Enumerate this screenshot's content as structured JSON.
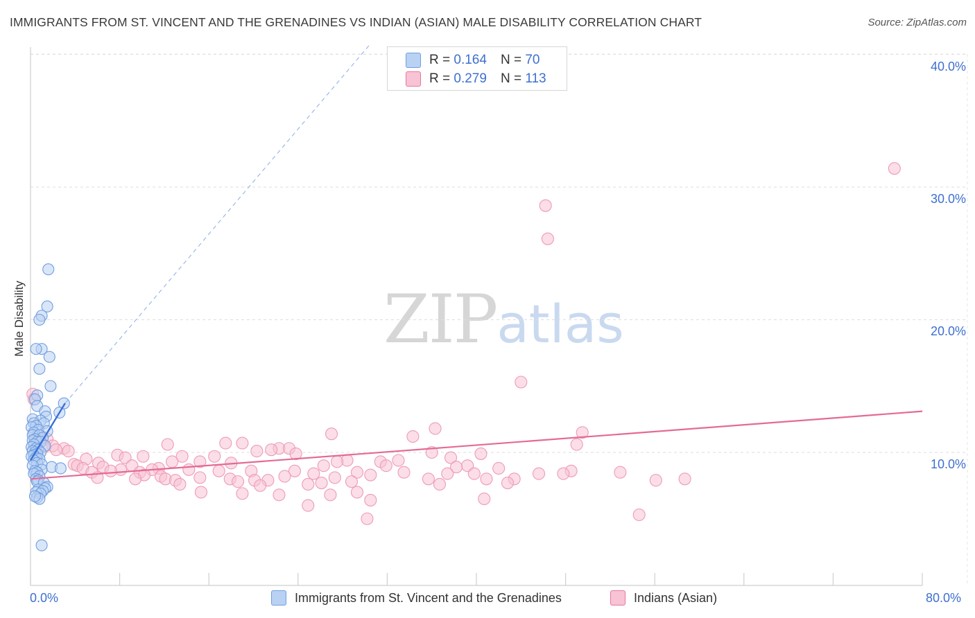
{
  "title": "IMMIGRANTS FROM ST. VINCENT AND THE GRENADINES VS INDIAN (ASIAN) MALE DISABILITY CORRELATION CHART",
  "source": "Source: ZipAtlas.com",
  "watermark": {
    "part1": "ZIP",
    "part2": "atlas"
  },
  "colors": {
    "blue": "#6f9de0",
    "blue_fill": "#b9d2f3",
    "blue_line": "#3a6fd8",
    "pink": "#e9769c",
    "pink_fill": "#f8c3d4",
    "pink_line": "#e46a95",
    "axis_text": "#3d6fd0"
  },
  "legend_top": {
    "rows": [
      {
        "r_label": "R =",
        "r_value": "0.164",
        "n_label": "N =",
        "n_value": "70"
      },
      {
        "r_label": "R =",
        "r_value": "0.279",
        "n_label": "N =",
        "n_value": "113"
      }
    ]
  },
  "chart_data": {
    "type": "scatter",
    "title": "IMMIGRANTS FROM ST. VINCENT AND THE GRENADINES VS INDIAN (ASIAN) MALE DISABILITY CORRELATION CHART",
    "xlabel": "",
    "ylabel": "Male Disability",
    "xlim": [
      0,
      80
    ],
    "ylim": [
      0,
      41
    ],
    "x_tick_labels": [
      "0.0%",
      "80.0%"
    ],
    "y_ticks": [
      10,
      20,
      30,
      40
    ],
    "y_tick_labels": [
      "10.0%",
      "20.0%",
      "30.0%",
      "40.0%"
    ],
    "grid": true,
    "legend_position": "bottom-center",
    "series": [
      {
        "name": "Immigrants from St. Vincent and the Grenadines",
        "color": "#6f9de0",
        "trend": {
          "x": [
            0,
            3.1
          ],
          "y": [
            9.4,
            13.7
          ],
          "dashed_extension_to": [
            30.5,
            40.8
          ]
        },
        "points": [
          [
            1.6,
            23.8
          ],
          [
            1.5,
            21.0
          ],
          [
            1.0,
            20.3
          ],
          [
            0.8,
            20.0
          ],
          [
            1.0,
            17.8
          ],
          [
            0.5,
            17.8
          ],
          [
            1.7,
            17.2
          ],
          [
            0.8,
            16.3
          ],
          [
            1.8,
            15.0
          ],
          [
            0.6,
            14.3
          ],
          [
            0.4,
            14.0
          ],
          [
            3.0,
            13.7
          ],
          [
            0.6,
            13.5
          ],
          [
            1.3,
            13.1
          ],
          [
            2.6,
            13.0
          ],
          [
            1.4,
            12.7
          ],
          [
            0.2,
            12.5
          ],
          [
            0.9,
            12.4
          ],
          [
            0.3,
            12.2
          ],
          [
            1.2,
            12.2
          ],
          [
            0.5,
            12.0
          ],
          [
            0.1,
            11.9
          ],
          [
            0.7,
            11.7
          ],
          [
            1.5,
            11.6
          ],
          [
            0.3,
            11.5
          ],
          [
            0.2,
            11.3
          ],
          [
            0.8,
            11.3
          ],
          [
            1.1,
            11.1
          ],
          [
            0.4,
            11.0
          ],
          [
            0.2,
            10.9
          ],
          [
            0.6,
            10.8
          ],
          [
            0.9,
            10.8
          ],
          [
            0.3,
            10.6
          ],
          [
            1.3,
            10.5
          ],
          [
            0.1,
            10.4
          ],
          [
            0.5,
            10.3
          ],
          [
            0.7,
            10.2
          ],
          [
            0.2,
            10.1
          ],
          [
            0.4,
            10.0
          ],
          [
            0.9,
            10.0
          ],
          [
            0.6,
            9.9
          ],
          [
            0.3,
            9.8
          ],
          [
            0.1,
            9.7
          ],
          [
            0.5,
            9.6
          ],
          [
            0.8,
            9.5
          ],
          [
            0.3,
            9.4
          ],
          [
            0.6,
            9.2
          ],
          [
            1.0,
            9.1
          ],
          [
            0.2,
            9.0
          ],
          [
            1.9,
            8.9
          ],
          [
            2.7,
            8.8
          ],
          [
            1.0,
            8.7
          ],
          [
            0.4,
            8.6
          ],
          [
            0.6,
            8.5
          ],
          [
            0.3,
            8.4
          ],
          [
            0.8,
            8.2
          ],
          [
            0.5,
            8.0
          ],
          [
            0.7,
            7.9
          ],
          [
            0.6,
            7.8
          ],
          [
            1.2,
            7.7
          ],
          [
            1.5,
            7.4
          ],
          [
            1.3,
            7.3
          ],
          [
            0.7,
            7.2
          ],
          [
            1.1,
            7.1
          ],
          [
            0.5,
            7.0
          ],
          [
            0.9,
            6.9
          ],
          [
            0.6,
            6.6
          ],
          [
            0.8,
            6.5
          ],
          [
            0.4,
            6.7
          ],
          [
            1.0,
            3.0
          ]
        ]
      },
      {
        "name": "Indians (Asian)",
        "color": "#e9769c",
        "trend": {
          "x": [
            0,
            80
          ],
          "y": [
            8.0,
            13.1
          ]
        },
        "points": [
          [
            77.5,
            31.4
          ],
          [
            46.2,
            28.6
          ],
          [
            46.4,
            26.1
          ],
          [
            44.0,
            15.3
          ],
          [
            0.2,
            14.4
          ],
          [
            0.3,
            14.0
          ],
          [
            36.3,
            11.8
          ],
          [
            49.5,
            11.5
          ],
          [
            27.0,
            11.4
          ],
          [
            34.3,
            11.2
          ],
          [
            1.0,
            11.2
          ],
          [
            1.5,
            11.0
          ],
          [
            0.4,
            10.6
          ],
          [
            19.0,
            10.7
          ],
          [
            17.5,
            10.7
          ],
          [
            12.3,
            10.6
          ],
          [
            49.0,
            10.6
          ],
          [
            2.0,
            10.5
          ],
          [
            1.2,
            10.4
          ],
          [
            22.3,
            10.3
          ],
          [
            3.0,
            10.3
          ],
          [
            2.3,
            10.2
          ],
          [
            21.6,
            10.2
          ],
          [
            23.2,
            10.3
          ],
          [
            3.4,
            10.1
          ],
          [
            20.3,
            10.1
          ],
          [
            36.0,
            10.0
          ],
          [
            23.8,
            9.9
          ],
          [
            40.4,
            9.9
          ],
          [
            13.6,
            9.7
          ],
          [
            16.5,
            9.7
          ],
          [
            10.1,
            9.7
          ],
          [
            7.8,
            9.8
          ],
          [
            8.5,
            9.6
          ],
          [
            33.0,
            9.4
          ],
          [
            31.4,
            9.3
          ],
          [
            37.7,
            9.6
          ],
          [
            5.0,
            9.5
          ],
          [
            28.4,
            9.4
          ],
          [
            27.5,
            9.3
          ],
          [
            12.7,
            9.3
          ],
          [
            15.2,
            9.3
          ],
          [
            18.0,
            9.2
          ],
          [
            6.1,
            9.2
          ],
          [
            3.9,
            9.1
          ],
          [
            4.2,
            9.0
          ],
          [
            31.9,
            9.0
          ],
          [
            39.2,
            9.0
          ],
          [
            9.1,
            9.0
          ],
          [
            26.3,
            9.0
          ],
          [
            38.2,
            8.9
          ],
          [
            6.5,
            8.9
          ],
          [
            42.0,
            8.8
          ],
          [
            4.7,
            8.8
          ],
          [
            11.5,
            8.8
          ],
          [
            10.9,
            8.7
          ],
          [
            8.1,
            8.7
          ],
          [
            14.2,
            8.7
          ],
          [
            16.9,
            8.6
          ],
          [
            23.7,
            8.6
          ],
          [
            7.2,
            8.6
          ],
          [
            19.8,
            8.6
          ],
          [
            9.8,
            8.5
          ],
          [
            29.3,
            8.5
          ],
          [
            33.5,
            8.5
          ],
          [
            48.5,
            8.6
          ],
          [
            5.5,
            8.5
          ],
          [
            45.6,
            8.4
          ],
          [
            37.4,
            8.4
          ],
          [
            25.4,
            8.4
          ],
          [
            30.5,
            8.3
          ],
          [
            39.8,
            8.4
          ],
          [
            47.8,
            8.4
          ],
          [
            52.9,
            8.5
          ],
          [
            10.2,
            8.3
          ],
          [
            11.7,
            8.2
          ],
          [
            15.2,
            8.1
          ],
          [
            6.0,
            8.1
          ],
          [
            22.8,
            8.2
          ],
          [
            27.3,
            8.1
          ],
          [
            40.9,
            8.0
          ],
          [
            43.4,
            8.0
          ],
          [
            12.1,
            8.0
          ],
          [
            13.0,
            7.9
          ],
          [
            17.9,
            8.0
          ],
          [
            20.1,
            7.9
          ],
          [
            9.4,
            8.0
          ],
          [
            21.3,
            7.9
          ],
          [
            58.7,
            8.0
          ],
          [
            35.7,
            8.0
          ],
          [
            56.1,
            7.9
          ],
          [
            28.8,
            7.8
          ],
          [
            18.6,
            7.8
          ],
          [
            42.8,
            7.7
          ],
          [
            26.1,
            7.7
          ],
          [
            36.7,
            7.6
          ],
          [
            24.9,
            7.6
          ],
          [
            13.4,
            7.6
          ],
          [
            20.6,
            7.5
          ],
          [
            15.3,
            7.0
          ],
          [
            19.0,
            6.9
          ],
          [
            22.3,
            6.8
          ],
          [
            26.9,
            6.8
          ],
          [
            29.3,
            7.0
          ],
          [
            40.7,
            6.5
          ],
          [
            30.5,
            6.4
          ],
          [
            24.9,
            6.0
          ],
          [
            54.6,
            5.3
          ],
          [
            30.2,
            5.0
          ]
        ]
      }
    ]
  },
  "bottom_legend": [
    {
      "label": "Immigrants from St. Vincent and the Grenadines"
    },
    {
      "label": "Indians (Asian)"
    }
  ]
}
